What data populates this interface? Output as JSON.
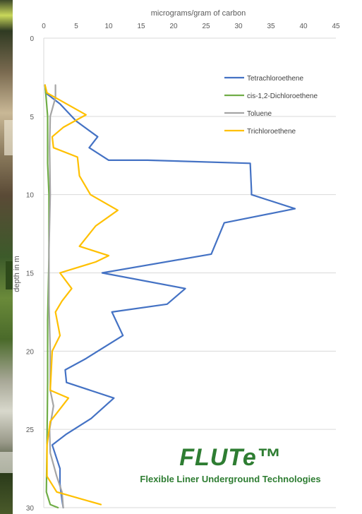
{
  "chart_data": {
    "type": "line",
    "title": "",
    "xlabel": "micrograms/gram of carbon",
    "ylabel": "depth in m",
    "xlim": [
      0,
      45
    ],
    "ylim": [
      30,
      0
    ],
    "x_ticks": [
      "0",
      "5",
      "10",
      "15",
      "20",
      "25",
      "30",
      "35",
      "40",
      "45"
    ],
    "y_ticks": [
      "0",
      "5",
      "10",
      "15",
      "20",
      "25",
      "30"
    ],
    "grid": "horizontal",
    "legend_position": "top-right",
    "x_axis_position": "top",
    "series": [
      {
        "name": "Tetrachloroethene",
        "color": "#4472c4",
        "points": [
          [
            0.2,
            3.0
          ],
          [
            0.3,
            3.5
          ],
          [
            2.5,
            4.2
          ],
          [
            5.0,
            5.3
          ],
          [
            8.3,
            6.3
          ],
          [
            7.0,
            7.0
          ],
          [
            10.0,
            7.8
          ],
          [
            16.0,
            7.8
          ],
          [
            31.8,
            8.0
          ],
          [
            32.0,
            9.8
          ],
          [
            32.0,
            10.0
          ],
          [
            38.7,
            10.9
          ],
          [
            27.8,
            11.8
          ],
          [
            25.8,
            13.8
          ],
          [
            9.0,
            15.0
          ],
          [
            21.8,
            16.0
          ],
          [
            19.0,
            17.0
          ],
          [
            10.5,
            17.5
          ],
          [
            12.2,
            19.0
          ],
          [
            6.4,
            20.5
          ],
          [
            3.3,
            21.2
          ],
          [
            3.5,
            22.0
          ],
          [
            10.8,
            23.0
          ],
          [
            7.3,
            24.3
          ],
          [
            3.5,
            25.3
          ],
          [
            1.3,
            26.0
          ],
          [
            2.5,
            27.5
          ],
          [
            2.5,
            28.5
          ],
          [
            2.8,
            29.5
          ],
          [
            3.0,
            30.0
          ]
        ]
      },
      {
        "name": "cis-1,2-Dichloroethene",
        "color": "#70ad47",
        "points": [
          [
            0.2,
            3.0
          ],
          [
            0.3,
            3.5
          ],
          [
            0.6,
            5.0
          ],
          [
            0.6,
            8.0
          ],
          [
            0.8,
            10.0
          ],
          [
            0.8,
            14.0
          ],
          [
            0.6,
            18.0
          ],
          [
            0.6,
            22.0
          ],
          [
            0.5,
            26.0
          ],
          [
            0.4,
            29.0
          ],
          [
            1.0,
            29.8
          ],
          [
            2.2,
            30.0
          ]
        ]
      },
      {
        "name": "Toluene",
        "color": "#a5a5a5",
        "points": [
          [
            1.8,
            3.0
          ],
          [
            1.8,
            3.8
          ],
          [
            1.0,
            5.0
          ],
          [
            0.9,
            7.0
          ],
          [
            1.0,
            10.0
          ],
          [
            0.8,
            13.5
          ],
          [
            0.8,
            17.0
          ],
          [
            1.0,
            20.0
          ],
          [
            1.0,
            22.5
          ],
          [
            1.5,
            23.5
          ],
          [
            0.9,
            25.0
          ],
          [
            1.0,
            26.5
          ],
          [
            2.0,
            28.0
          ],
          [
            2.8,
            29.0
          ],
          [
            3.0,
            30.0
          ]
        ]
      },
      {
        "name": "Trichloroethene",
        "color": "#ffc000",
        "points": [
          [
            0.2,
            3.0
          ],
          [
            0.5,
            3.5
          ],
          [
            6.5,
            4.9
          ],
          [
            3.0,
            5.7
          ],
          [
            1.3,
            6.3
          ],
          [
            1.5,
            7.0
          ],
          [
            5.2,
            7.6
          ],
          [
            5.5,
            8.8
          ],
          [
            7.2,
            10.0
          ],
          [
            11.4,
            11.0
          ],
          [
            8.0,
            12.0
          ],
          [
            5.5,
            13.3
          ],
          [
            10.0,
            13.9
          ],
          [
            8.0,
            14.3
          ],
          [
            2.5,
            15.0
          ],
          [
            4.3,
            16.0
          ],
          [
            2.8,
            16.8
          ],
          [
            1.8,
            17.5
          ],
          [
            2.5,
            19.0
          ],
          [
            1.3,
            20.0
          ],
          [
            1.0,
            22.5
          ],
          [
            3.8,
            23.0
          ],
          [
            1.0,
            24.5
          ],
          [
            0.5,
            26.0
          ],
          [
            0.5,
            28.0
          ],
          [
            2.0,
            29.0
          ],
          [
            8.8,
            29.8
          ]
        ]
      }
    ]
  },
  "logo": {
    "name": "FLUTe™",
    "tagline": "Flexible Liner Underground Technologies"
  }
}
